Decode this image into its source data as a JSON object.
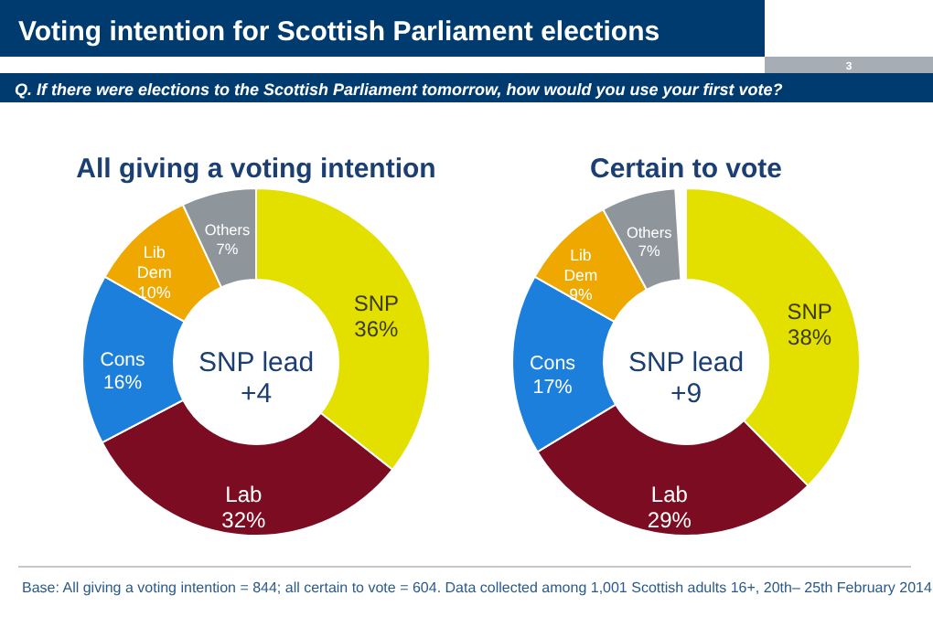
{
  "chart_data": [
    {
      "type": "donut",
      "title": "All giving a voting intention",
      "categories": [
        "SNP",
        "Lab",
        "Cons",
        "Lib Dem",
        "Others"
      ],
      "values": [
        36,
        32,
        16,
        10,
        7
      ],
      "value_labels": [
        "36%",
        "32%",
        "16%",
        "10%",
        "7%"
      ],
      "colors": [
        "#e3e000",
        "#7c0c22",
        "#1c7fdc",
        "#eea800",
        "#8e969c"
      ],
      "annotations": [
        "SNP lead +4",
        "Voting intention for Scottish Parliament elections",
        "Q. If there were elections to the Scottish Parliament tomorrow, how would you use your first vote?",
        "3",
        "Base: All giving a voting intention = 844; all certain to vote = 604. Data collected among 1,001 Scottish adults 16+, 20th– 25th February 2014"
      ]
    },
    {
      "type": "donut",
      "title": "Certain to vote",
      "categories": [
        "SNP",
        "Lab",
        "Cons",
        "Lib Dem",
        "Others"
      ],
      "values": [
        38,
        29,
        17,
        9,
        7
      ],
      "value_labels": [
        "38%",
        "29%",
        "17%",
        "9%",
        "7%"
      ],
      "colors": [
        "#e3e000",
        "#7c0c22",
        "#1c7fdc",
        "#eea800",
        "#8e969c"
      ],
      "annotations": [
        "SNP lead +9"
      ]
    }
  ]
}
